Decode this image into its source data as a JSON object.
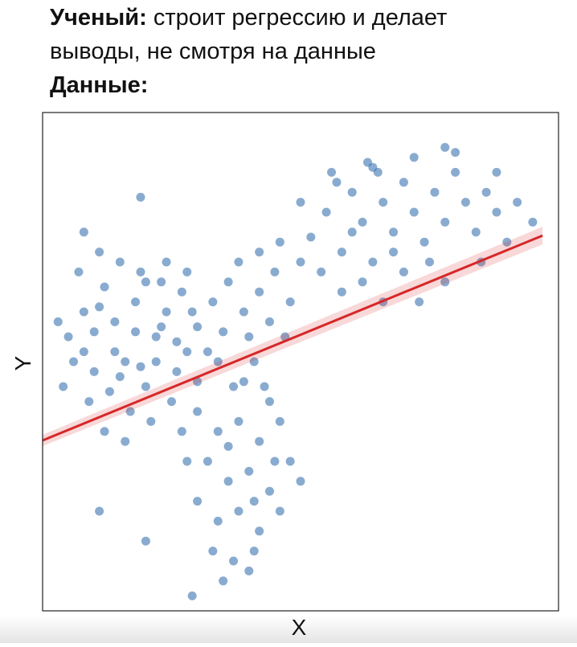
{
  "header": {
    "label": "Ученый:",
    "line1": "строит регрессию и делает",
    "line2": "выводы, не смотря на данные",
    "data_label": "Данные:"
  },
  "chart_data": {
    "type": "scatter",
    "xlabel": "X",
    "ylabel": "Y",
    "xlim": [
      0,
      100
    ],
    "ylim": [
      0,
      100
    ],
    "color": "#3b73b1",
    "x": [
      5,
      8,
      10,
      12,
      14,
      16,
      18,
      20,
      22,
      24,
      26,
      28,
      30,
      9,
      13,
      17,
      21,
      25,
      7,
      11,
      15,
      19,
      23,
      27,
      6,
      10,
      14,
      18,
      22,
      26,
      30,
      32,
      3,
      4,
      12,
      16,
      20,
      24,
      28,
      15,
      19,
      11,
      23,
      8,
      29,
      33,
      36,
      39,
      42,
      45,
      48,
      35,
      40,
      44,
      38,
      42,
      46,
      50,
      34,
      41,
      47,
      37,
      43,
      52,
      55,
      58,
      60,
      62,
      64,
      66,
      68,
      70,
      72,
      74,
      76,
      78,
      80,
      82,
      84,
      86,
      88,
      90,
      54,
      58,
      62,
      66,
      70,
      56,
      63,
      72,
      80,
      92,
      95,
      75,
      68,
      60,
      85,
      78,
      73,
      50,
      57,
      65,
      88,
      30,
      34,
      38,
      42,
      46,
      32,
      36,
      40,
      44,
      48,
      30,
      34,
      38,
      42,
      46,
      33,
      37,
      41,
      35,
      40,
      28,
      27,
      50,
      44,
      39,
      36,
      41,
      45,
      19,
      8,
      64,
      78,
      29,
      11,
      20
    ],
    "y": [
      55,
      60,
      48,
      65,
      58,
      50,
      62,
      45,
      55,
      60,
      48,
      52,
      57,
      42,
      44,
      40,
      38,
      42,
      68,
      72,
      70,
      68,
      66,
      64,
      50,
      56,
      52,
      56,
      50,
      54,
      46,
      52,
      58,
      45,
      36,
      34,
      66,
      70,
      68,
      47,
      49,
      61,
      57,
      52,
      60,
      62,
      66,
      60,
      64,
      68,
      62,
      56,
      55,
      58,
      70,
      72,
      74,
      70,
      50,
      50,
      55,
      45,
      45,
      75,
      80,
      72,
      84,
      78,
      70,
      82,
      76,
      86,
      80,
      74,
      84,
      78,
      88,
      82,
      76,
      84,
      80,
      74,
      68,
      64,
      66,
      62,
      68,
      88,
      90,
      91,
      92,
      82,
      78,
      70,
      72,
      76,
      70,
      66,
      62,
      82,
      86,
      88,
      88,
      40,
      36,
      38,
      34,
      38,
      30,
      26,
      28,
      24,
      30,
      22,
      18,
      20,
      16,
      20,
      12,
      10,
      12,
      6,
      8,
      30,
      36,
      26,
      42,
      46,
      33,
      22,
      30,
      83,
      76,
      89,
      93,
      3,
      20,
      14
    ],
    "regression": {
      "x": [
        0,
        96.9
      ],
      "y": [
        34.2,
        75.3
      ],
      "color": "#d62728"
    }
  }
}
